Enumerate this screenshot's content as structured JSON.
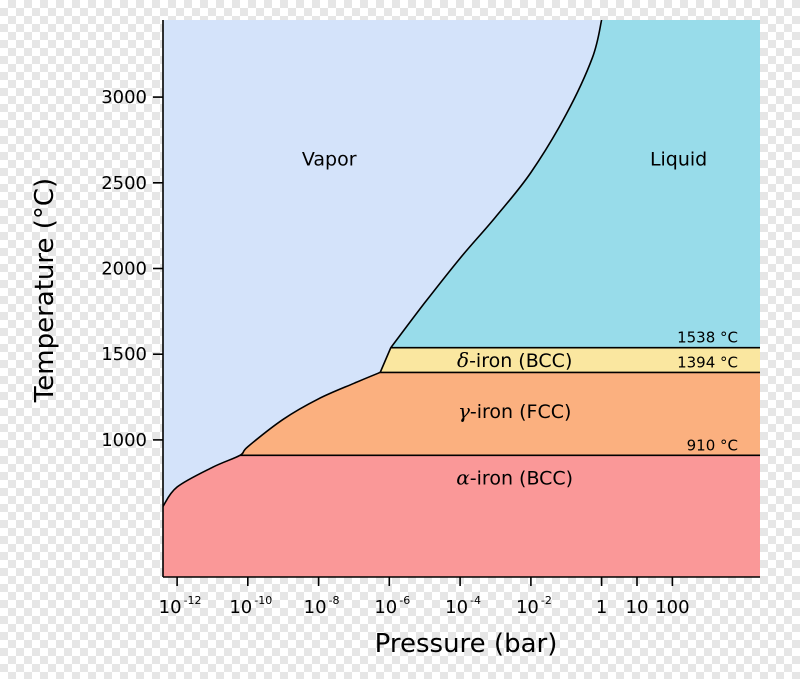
{
  "chart_data": {
    "type": "area",
    "xlabel": "Pressure (bar)",
    "ylabel": "Temperature (°C)",
    "x_scale": "log",
    "x_ticks": [
      {
        "value": 1e-12,
        "base": "10",
        "exp": "-12"
      },
      {
        "value": 1e-10,
        "base": "10",
        "exp": "-10"
      },
      {
        "value": 1e-08,
        "base": "10",
        "exp": "-8"
      },
      {
        "value": 1e-06,
        "base": "10",
        "exp": "-6"
      },
      {
        "value": 0.0001,
        "base": "10",
        "exp": "-4"
      },
      {
        "value": 0.01,
        "base": "10",
        "exp": "-2"
      },
      {
        "value": 1,
        "base": "1",
        "exp": ""
      },
      {
        "value": 10,
        "base": "10",
        "exp": ""
      },
      {
        "value": 100,
        "base": "100",
        "exp": ""
      }
    ],
    "y_ticks": [
      1000,
      1500,
      2000,
      2500,
      3000
    ],
    "xlim": [
      4e-13,
      30000.0
    ],
    "ylim": [
      200,
      3450
    ],
    "grid": false,
    "regions": [
      {
        "id": "vapor",
        "label": "Vapor",
        "greek": "",
        "color": "#d4e3fa",
        "label_at": [
          2e-08,
          2600
        ]
      },
      {
        "id": "liquid",
        "label": "Liquid",
        "greek": "",
        "color": "#98dcea",
        "label_at": [
          150,
          2600
        ]
      },
      {
        "id": "delta",
        "label": "-iron (BCC)",
        "greek": "δ",
        "color": "#fae7a0",
        "label_at": [
          0.0035,
          1466
        ]
      },
      {
        "id": "gamma",
        "label": "-iron (FCC)",
        "greek": "γ",
        "color": "#fbb07f",
        "label_at": [
          0.0035,
          1170
        ]
      },
      {
        "id": "alpha",
        "label": "-iron (BCC)",
        "greek": "α",
        "color": "#fa9898",
        "label_at": [
          0.0035,
          780
        ]
      }
    ],
    "phase_lines": [
      {
        "temp": 1538,
        "label": "1538 °C",
        "x_from": 1.1e-06
      },
      {
        "temp": 1394,
        "label": "1394 °C",
        "x_from": 5.5e-07
      },
      {
        "temp": 910,
        "label": "910 °C",
        "x_from": 6e-11
      }
    ],
    "vapor_boundary": [
      [
        4e-13,
        612
      ],
      [
        1e-12,
        725
      ],
      [
        1e-11,
        840
      ],
      [
        6e-11,
        910
      ],
      [
        1e-10,
        960
      ],
      [
        1e-09,
        1120
      ],
      [
        1e-08,
        1240
      ],
      [
        1e-07,
        1330
      ],
      [
        5.5e-07,
        1394
      ]
    ],
    "liquid_boundary": [
      [
        1.1e-06,
        1538
      ],
      [
        1e-05,
        1800
      ],
      [
        0.0001,
        2060
      ],
      [
        0.001,
        2300
      ],
      [
        0.01,
        2560
      ],
      [
        0.1,
        2900
      ],
      [
        0.55,
        3230
      ],
      [
        1,
        3450
      ]
    ]
  }
}
